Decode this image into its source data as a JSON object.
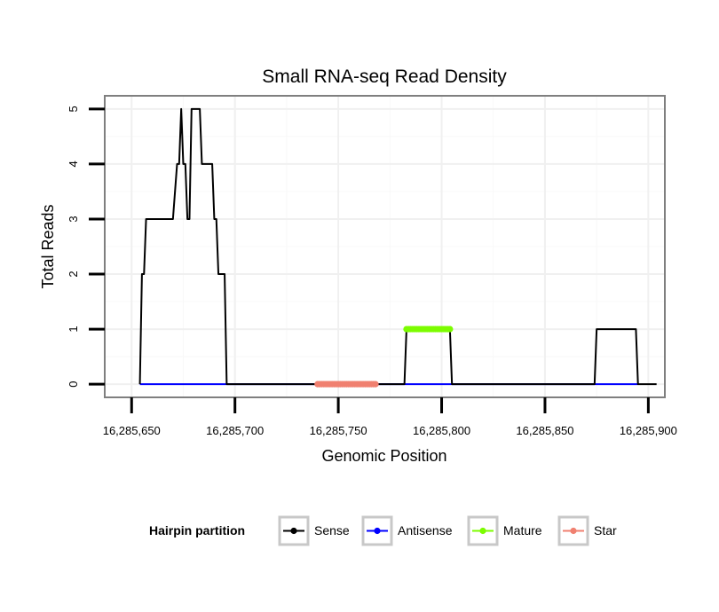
{
  "chart_data": {
    "type": "line",
    "title": "Small RNA-seq Read Density",
    "xlabel": "Genomic Position",
    "ylabel": "Total Reads",
    "xlim": [
      16285637,
      16285908
    ],
    "ylim": [
      -0.24,
      5.24
    ],
    "x_ticks": [
      16285650,
      16285700,
      16285750,
      16285800,
      16285850,
      16285900
    ],
    "x_tick_labels": [
      "16,285,650",
      "16,285,700",
      "16,285,750",
      "16,285,800",
      "16,285,850",
      "16,285,900"
    ],
    "y_ticks": [
      0,
      1,
      2,
      3,
      4,
      5
    ],
    "y_tick_labels": [
      "0",
      "1",
      "2",
      "3",
      "4",
      "5"
    ],
    "grid": true,
    "legend": {
      "title": "Hairpin partition",
      "position": "bottom",
      "entries": [
        "Sense",
        "Antisense",
        "Mature",
        "Star"
      ]
    },
    "series": [
      {
        "name": "Sense",
        "color": "#000000",
        "x": [
          16285654,
          16285655,
          16285656,
          16285657,
          16285658,
          16285659,
          16285664,
          16285670,
          16285672,
          16285673,
          16285674,
          16285675,
          16285676,
          16285677,
          16285678,
          16285679,
          16285680,
          16285683,
          16285684,
          16285685,
          16285689,
          16285690,
          16285691,
          16285692,
          16285693,
          16285695,
          16285696,
          16285699,
          16285750,
          16285780,
          16285782,
          16285783,
          16285804,
          16285805,
          16285850,
          16285874,
          16285875,
          16285894,
          16285895,
          16285904
        ],
        "y": [
          0,
          2,
          2,
          3,
          3,
          3,
          3,
          3,
          4,
          4,
          5,
          4,
          4,
          3,
          3,
          5,
          5,
          5,
          4,
          4,
          4,
          3,
          3,
          2,
          2,
          2,
          0,
          0,
          0,
          0,
          0,
          1,
          1,
          0,
          0,
          0,
          1,
          1,
          0,
          0
        ]
      },
      {
        "name": "Antisense",
        "color": "#0000ff",
        "x": [
          16285654,
          16285699,
          16285782,
          16285804,
          16285874,
          16285895
        ],
        "y": [
          0,
          0,
          0,
          0,
          0,
          0
        ]
      },
      {
        "name": "Mature",
        "color": "#7cfc00",
        "x": [
          16285783,
          16285784,
          16285785,
          16285786,
          16285787,
          16285788,
          16285789,
          16285790,
          16285791,
          16285792,
          16285793,
          16285794,
          16285795,
          16285796,
          16285797,
          16285798,
          16285799,
          16285800,
          16285801,
          16285802,
          16285803,
          16285804
        ],
        "y": [
          1,
          1,
          1,
          1,
          1,
          1,
          1,
          1,
          1,
          1,
          1,
          1,
          1,
          1,
          1,
          1,
          1,
          1,
          1,
          1,
          1,
          1
        ]
      },
      {
        "name": "Star",
        "color": "#f08070",
        "x": [
          16285740,
          16285741,
          16285742,
          16285743,
          16285744,
          16285745,
          16285746,
          16285747,
          16285748,
          16285749,
          16285750,
          16285751,
          16285752,
          16285753,
          16285754,
          16285755,
          16285756,
          16285757,
          16285758,
          16285759,
          16285760,
          16285761,
          16285762,
          16285763,
          16285764,
          16285765,
          16285766,
          16285767,
          16285768
        ],
        "y": [
          0,
          0,
          0,
          0,
          0,
          0,
          0,
          0,
          0,
          0,
          0,
          0,
          0,
          0,
          0,
          0,
          0,
          0,
          0,
          0,
          0,
          0,
          0,
          0,
          0,
          0,
          0,
          0,
          0
        ]
      }
    ]
  }
}
